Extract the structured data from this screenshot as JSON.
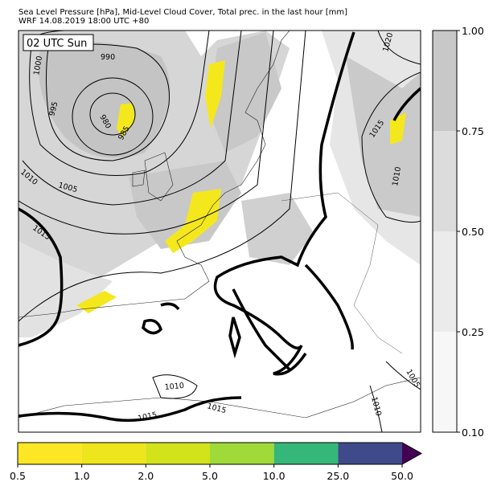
{
  "header": {
    "title": "Sea Level Pressure [hPa], Mid-Level Cloud Cover, Total prec. in the last hour [mm]",
    "subtitle": "WRF 14.08.2019 18:00 UTC +80"
  },
  "map": {
    "time_label": "02 UTC Sun",
    "contour_labels": [
      "990",
      "1000",
      "995",
      "980",
      "985",
      "1010",
      "1005",
      "1015",
      "1020",
      "1015",
      "1010",
      "1005",
      "1010",
      "1010",
      "1015",
      "1015"
    ]
  },
  "cloud_colorbar": {
    "ticks": [
      "0.10",
      "0.25",
      "0.50",
      "0.75",
      "1.00"
    ],
    "colors": [
      "#f7f7f7",
      "#ebebeb",
      "#dcdcdc",
      "#c8c8c8"
    ]
  },
  "precip_colorbar": {
    "ticks": [
      "0.5",
      "1.0",
      "2.0",
      "5.0",
      "10.0",
      "25.0",
      "50.0"
    ],
    "colors": [
      "#fde725",
      "#eee51c",
      "#d2e21b",
      "#a0da39",
      "#35b779",
      "#3e4a89"
    ],
    "extend_color": "#440154"
  }
}
